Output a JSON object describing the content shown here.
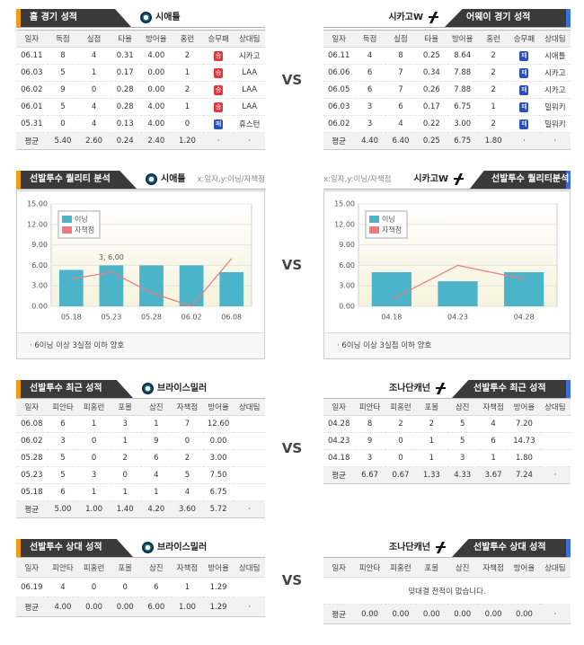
{
  "vs": "VS",
  "result_colors": {
    "승": "#e0383e",
    "패": "#2d4fb8"
  },
  "home": {
    "title": "홈 경기 성적",
    "team": "시애틀",
    "columns": [
      "일자",
      "득점",
      "실점",
      "타율",
      "방어율",
      "홈런",
      "승무패",
      "상대팀"
    ],
    "rows": [
      [
        "06.11",
        "8",
        "4",
        "0.31",
        "4.00",
        "2",
        "승",
        "시카고"
      ],
      [
        "06.03",
        "5",
        "1",
        "0.17",
        "0.00",
        "1",
        "승",
        "LAA"
      ],
      [
        "06.02",
        "9",
        "0",
        "0.28",
        "0.00",
        "2",
        "승",
        "LAA"
      ],
      [
        "06.01",
        "5",
        "4",
        "0.28",
        "4.00",
        "1",
        "승",
        "LAA"
      ],
      [
        "05.31",
        "0",
        "4",
        "0.13",
        "4.00",
        "0",
        "패",
        "휴스턴"
      ]
    ],
    "avg": [
      "평균",
      "5.40",
      "2.60",
      "0.24",
      "2.40",
      "1.20",
      "·",
      "·"
    ]
  },
  "away": {
    "title": "어웨이 경기 성적",
    "team": "시카고W",
    "columns": [
      "일자",
      "득점",
      "실점",
      "타율",
      "방어율",
      "홈런",
      "승무패",
      "상대팀"
    ],
    "rows": [
      [
        "06.11",
        "4",
        "8",
        "0.25",
        "8.64",
        "2",
        "패",
        "시애틀"
      ],
      [
        "06.06",
        "6",
        "7",
        "0.34",
        "7.88",
        "2",
        "패",
        "시카고"
      ],
      [
        "06.05",
        "6",
        "7",
        "0.26",
        "7.88",
        "2",
        "패",
        "시카고"
      ],
      [
        "06.03",
        "3",
        "6",
        "0.17",
        "6.75",
        "1",
        "패",
        "밀워키"
      ],
      [
        "06.02",
        "3",
        "4",
        "0.22",
        "3.00",
        "2",
        "패",
        "밀워키"
      ]
    ],
    "avg": [
      "평균",
      "4.40",
      "6.40",
      "0.25",
      "6.75",
      "1.80",
      "·",
      "·"
    ]
  },
  "quality": {
    "left": {
      "title": "선발투수 퀄리티 분석",
      "team": "시애틀",
      "note": "x:일자,y:이닝/자책점",
      "footnote": "· 6이닝 이상 3실점 이하 양호"
    },
    "right": {
      "title": "선발투수 퀄리티분석",
      "team": "시카고W",
      "note": "x:일자,y:이닝/자책점",
      "footnote": "· 6이닝 이상 3실점 이하 양호"
    }
  },
  "chart_data": [
    {
      "type": "bar",
      "categories": [
        "05.18",
        "05.23",
        "05.28",
        "06.02",
        "06.08"
      ],
      "series": [
        {
          "name": "이닝",
          "color": "#4bb4c8",
          "values": [
            5.33,
            6,
            6,
            6,
            5
          ]
        },
        {
          "name": "자책점",
          "color": "#f0787e",
          "type": "line",
          "values": [
            4,
            5,
            2,
            0,
            7
          ]
        }
      ],
      "ylim": [
        0,
        15
      ],
      "yticks": [
        {
          "value": 0,
          "label": "0.00"
        },
        {
          "value": 3,
          "label": "3.00"
        },
        {
          "value": 6,
          "label": "6.00"
        },
        {
          "value": 9,
          "label": "9.00"
        },
        {
          "value": 12,
          "label": "12.00"
        },
        {
          "value": 15,
          "label": "15.00"
        }
      ],
      "grid": true,
      "annotation": "3, 6.00"
    },
    {
      "type": "bar",
      "categories": [
        "04.18",
        "04.23",
        "04.28"
      ],
      "series": [
        {
          "name": "이닝",
          "color": "#4bb4c8",
          "values": [
            5,
            3.67,
            5
          ]
        },
        {
          "name": "자책점",
          "color": "#f0787e",
          "type": "line",
          "values": [
            1,
            6,
            4
          ]
        }
      ],
      "ylim": [
        0,
        15
      ],
      "yticks": [
        {
          "value": 0,
          "label": "0.00"
        },
        {
          "value": 3,
          "label": "3.00"
        },
        {
          "value": 6,
          "label": "6.00"
        },
        {
          "value": 9,
          "label": "9.00"
        },
        {
          "value": 12,
          "label": "12.00"
        },
        {
          "value": 15,
          "label": "15.00"
        }
      ],
      "grid": true
    }
  ],
  "recent": {
    "left": {
      "title": "선발투수 최근 성적",
      "pitcher": "브라이스밀러",
      "columns": [
        "일자",
        "피안타",
        "피홈런",
        "포볼",
        "삼진",
        "자책점",
        "방어율",
        "상대팀"
      ],
      "rows": [
        [
          "06.08",
          "6",
          "1",
          "3",
          "1",
          "7",
          "12.60"
        ],
        [
          "06.02",
          "3",
          "0",
          "1",
          "9",
          "0",
          "0.00"
        ],
        [
          "05.28",
          "5",
          "0",
          "2",
          "6",
          "2",
          "3.00"
        ],
        [
          "05.23",
          "5",
          "3",
          "0",
          "4",
          "5",
          "7.50"
        ],
        [
          "05.18",
          "6",
          "1",
          "1",
          "1",
          "4",
          "6.75"
        ]
      ],
      "avg": [
        "평균",
        "5.00",
        "1.00",
        "1.40",
        "4.20",
        "3.60",
        "5.72",
        "·"
      ]
    },
    "right": {
      "title": "선발투수 최근 성적",
      "pitcher": "조나단캐넌",
      "columns": [
        "일자",
        "피안타",
        "피홈런",
        "포볼",
        "삼진",
        "자책점",
        "방어율",
        "상대팀"
      ],
      "rows": [
        [
          "04.28",
          "8",
          "2",
          "2",
          "5",
          "4",
          "7.20"
        ],
        [
          "04.23",
          "9",
          "0",
          "1",
          "5",
          "6",
          "14.73"
        ],
        [
          "04.18",
          "3",
          "0",
          "1",
          "3",
          "1",
          "1.80"
        ]
      ],
      "avg": [
        "평균",
        "6.67",
        "0.67",
        "1.33",
        "4.33",
        "3.67",
        "7.24",
        "·"
      ]
    }
  },
  "versus": {
    "left": {
      "title": "선발투수 상대 성적",
      "pitcher": "브라이스밀러",
      "columns": [
        "일자",
        "피안타",
        "피홈런",
        "포볼",
        "삼진",
        "자책점",
        "방어율",
        "상대팀"
      ],
      "rows": [
        [
          "06.19",
          "4",
          "0",
          "0",
          "6",
          "1",
          "1.29"
        ]
      ],
      "avg": [
        "평균",
        "4.00",
        "0.00",
        "0.00",
        "6.00",
        "1.00",
        "1.29",
        "·"
      ]
    },
    "right": {
      "title": "선발투수 상대 성적",
      "pitcher": "조나단캐넌",
      "columns": [
        "일자",
        "피안타",
        "피홈런",
        "포볼",
        "삼진",
        "자책점",
        "방어율",
        "상대팀"
      ],
      "rows": [],
      "empty": "맞대결 전적이 없습니다.",
      "avg": [
        "평균",
        "0.00",
        "0.00",
        "0.00",
        "0.00",
        "0.00",
        "0.00",
        "·"
      ]
    }
  }
}
